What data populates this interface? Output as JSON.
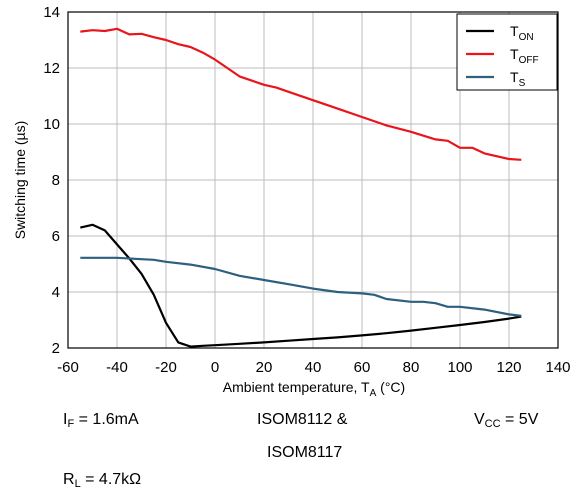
{
  "chart_data": {
    "type": "line",
    "xlabel_prefix": "Ambient temperature, T",
    "xlabel_sub": "A",
    "xlabel_suffix": " (°C)",
    "ylabel": "Switching time (µs)",
    "xlim": [
      -60,
      140
    ],
    "ylim": [
      2,
      14
    ],
    "xticks": [
      -60,
      -40,
      -20,
      0,
      20,
      40,
      60,
      80,
      100,
      120,
      140
    ],
    "yticks": [
      2,
      4,
      6,
      8,
      10,
      12,
      14
    ],
    "grid": true,
    "legend_position": "top-right",
    "series": [
      {
        "name": "T_ON",
        "label_main": "T",
        "label_sub": "ON",
        "color": "#000000",
        "x": [
          -55,
          -50,
          -45,
          -40,
          -35,
          -30,
          -25,
          -20,
          -15,
          -10,
          -5,
          0,
          10,
          20,
          30,
          40,
          50,
          60,
          70,
          80,
          90,
          100,
          110,
          120,
          125
        ],
        "y": [
          6.3,
          6.4,
          6.2,
          5.7,
          5.2,
          4.65,
          3.9,
          2.9,
          2.2,
          2.05,
          2.08,
          2.1,
          2.15,
          2.2,
          2.26,
          2.32,
          2.38,
          2.45,
          2.53,
          2.62,
          2.72,
          2.82,
          2.93,
          3.05,
          3.12
        ]
      },
      {
        "name": "T_OFF",
        "label_main": "T",
        "label_sub": "OFF",
        "color": "#e8161b",
        "x": [
          -55,
          -50,
          -45,
          -40,
          -35,
          -30,
          -25,
          -20,
          -15,
          -10,
          -5,
          0,
          5,
          10,
          20,
          25,
          30,
          40,
          50,
          60,
          70,
          80,
          90,
          95,
          100,
          105,
          110,
          120,
          125
        ],
        "y": [
          13.3,
          13.35,
          13.32,
          13.4,
          13.2,
          13.22,
          13.1,
          13.0,
          12.85,
          12.75,
          12.55,
          12.3,
          12.0,
          11.7,
          11.4,
          11.3,
          11.15,
          10.85,
          10.55,
          10.25,
          9.95,
          9.72,
          9.45,
          9.4,
          9.15,
          9.15,
          8.95,
          8.75,
          8.72
        ]
      },
      {
        "name": "T_S",
        "label_main": "T",
        "label_sub": "S",
        "color": "#2d5f7f",
        "x": [
          -55,
          -50,
          -40,
          -30,
          -25,
          -20,
          -10,
          0,
          10,
          20,
          30,
          40,
          50,
          60,
          65,
          70,
          80,
          85,
          90,
          95,
          100,
          110,
          120,
          125
        ],
        "y": [
          5.22,
          5.22,
          5.22,
          5.17,
          5.15,
          5.08,
          4.98,
          4.82,
          4.58,
          4.43,
          4.28,
          4.12,
          4.0,
          3.95,
          3.9,
          3.75,
          3.65,
          3.65,
          3.6,
          3.47,
          3.47,
          3.37,
          3.2,
          3.15
        ]
      }
    ]
  },
  "conditions": {
    "if_main": "I",
    "if_sub": "F",
    "if_rest": " = 1.6mA",
    "device_line1": "ISOM8112 &",
    "device_line2": "ISOM8117",
    "vcc_main": "V",
    "vcc_sub": "CC",
    "vcc_rest": " = 5V",
    "rl_main": "R",
    "rl_sub": "L",
    "rl_rest": " = 4.7kΩ"
  }
}
